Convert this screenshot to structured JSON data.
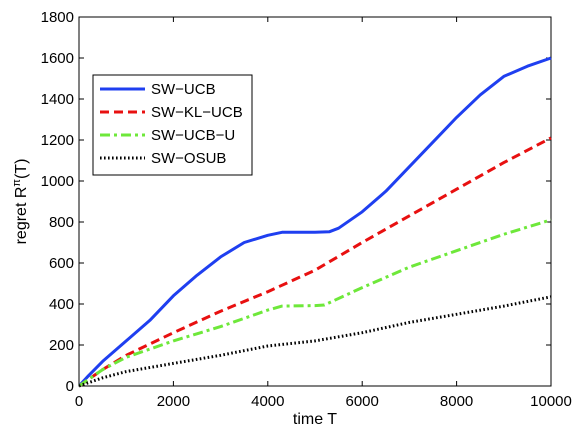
{
  "chart_data": {
    "type": "line",
    "title": "",
    "xlabel": "time T",
    "ylabel": "regret R",
    "ylabel_superscript": "π",
    "ylabel_suffix": "(T)",
    "xlim": [
      0,
      10000
    ],
    "ylim": [
      0,
      1800
    ],
    "xticks": [
      0,
      2000,
      4000,
      6000,
      8000,
      10000
    ],
    "yticks": [
      0,
      200,
      400,
      600,
      800,
      1000,
      1200,
      1400,
      1600,
      1800
    ],
    "grid": false,
    "legend_position": "upper-left",
    "series": [
      {
        "name": "SW−UCB",
        "color": "#1f3ff0",
        "style": "solid",
        "x": [
          0,
          200,
          500,
          1000,
          1500,
          2000,
          2500,
          3000,
          3500,
          4000,
          4300,
          4600,
          5000,
          5300,
          5500,
          6000,
          6500,
          7000,
          7500,
          8000,
          8500,
          9000,
          9500,
          10000
        ],
        "y": [
          0,
          50,
          120,
          220,
          320,
          440,
          540,
          630,
          700,
          735,
          750,
          750,
          750,
          752,
          770,
          850,
          950,
          1070,
          1190,
          1310,
          1420,
          1510,
          1560,
          1600
        ]
      },
      {
        "name": "SW−KL−UCB",
        "color": "#e81010",
        "style": "dashed",
        "x": [
          0,
          500,
          1000,
          2000,
          3000,
          4000,
          5000,
          6000,
          7000,
          8000,
          9000,
          10000
        ],
        "y": [
          0,
          80,
          150,
          260,
          365,
          460,
          565,
          700,
          830,
          960,
          1090,
          1210
        ]
      },
      {
        "name": "SW−UCB−U",
        "color": "#6ee83a",
        "style": "dashdot",
        "x": [
          0,
          500,
          1000,
          2000,
          3000,
          4000,
          4300,
          5000,
          5200,
          6000,
          7000,
          8000,
          9000,
          10000
        ],
        "y": [
          0,
          80,
          140,
          220,
          290,
          370,
          390,
          392,
          395,
          480,
          580,
          660,
          740,
          810
        ]
      },
      {
        "name": "SW−OSUB",
        "color": "#000000",
        "style": "dotted",
        "x": [
          0,
          500,
          1000,
          2000,
          3000,
          4000,
          5000,
          6000,
          7000,
          8000,
          9000,
          10000
        ],
        "y": [
          0,
          40,
          70,
          110,
          150,
          195,
          220,
          260,
          310,
          350,
          390,
          435
        ]
      }
    ]
  }
}
